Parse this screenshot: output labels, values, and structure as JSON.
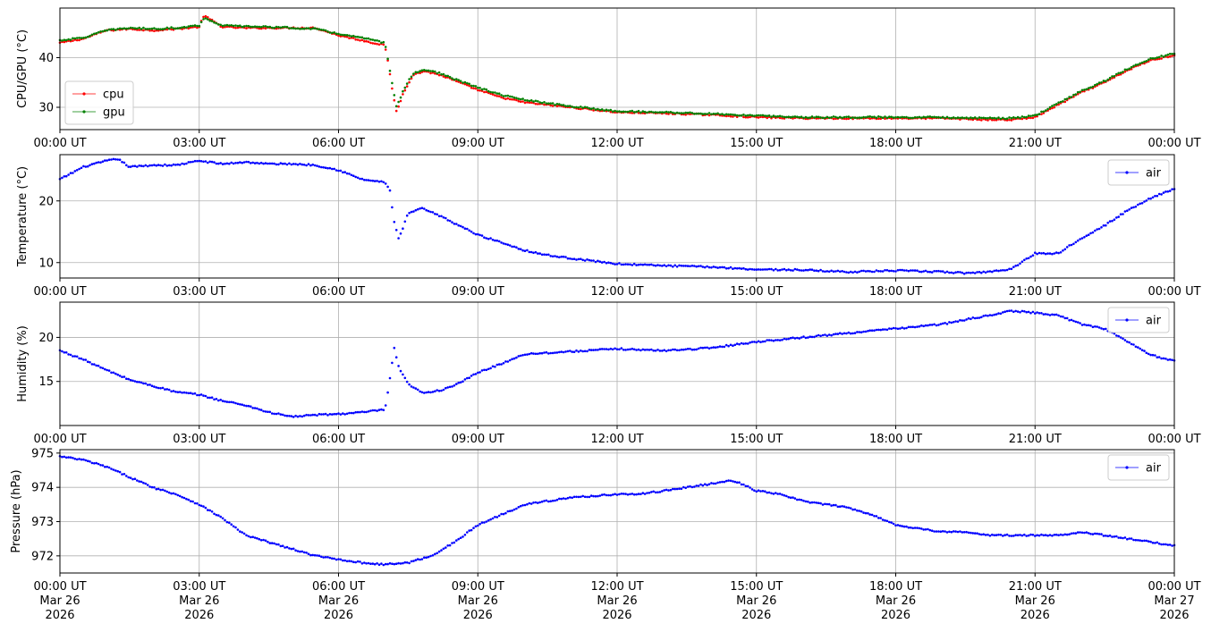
{
  "chart_data": [
    {
      "type": "line",
      "ylabel": "CPU/GPU (°C)",
      "xlim": [
        "00:00",
        "24:00"
      ],
      "ylim": [
        25.5,
        50
      ],
      "yticks": [
        30,
        40
      ],
      "x_tick_labels": [
        "00:00 UT",
        "03:00 UT",
        "06:00 UT",
        "09:00 UT",
        "12:00 UT",
        "15:00 UT",
        "18:00 UT",
        "21:00 UT",
        "00:00 UT"
      ],
      "grid": true,
      "legend_placement": "bottom-left",
      "series": [
        {
          "name": "cpu",
          "color": "#ff0000",
          "x_hours": [
            0,
            0.5,
            1,
            1.5,
            2,
            2.5,
            3,
            3.1,
            3.5,
            4,
            4.5,
            5,
            5.5,
            6,
            6.5,
            7,
            7.05,
            7.15,
            7.25,
            7.4,
            7.6,
            7.85,
            8.2,
            8.6,
            9,
            9.5,
            10,
            10.5,
            11,
            12,
            13,
            14,
            15,
            16,
            17,
            18,
            19,
            20,
            20.5,
            21,
            21.5,
            22,
            22.5,
            23,
            23.5,
            24
          ],
          "y": [
            43,
            43.8,
            45.5,
            45.8,
            45.5,
            45.8,
            46.2,
            48.5,
            46.2,
            46,
            46,
            46,
            46,
            44.5,
            43.5,
            42.5,
            40,
            34,
            29,
            33,
            36.5,
            37.3,
            36.5,
            35,
            33.5,
            32,
            31,
            30.5,
            30,
            29,
            28.8,
            28.5,
            28,
            27.8,
            27.8,
            27.8,
            27.8,
            27.5,
            27.5,
            28,
            30.5,
            33,
            35,
            37.5,
            39.5,
            40.5
          ]
        },
        {
          "name": "gpu",
          "color": "#008000",
          "x_hours": [
            0,
            0.5,
            1,
            1.5,
            2,
            2.5,
            3,
            3.1,
            3.5,
            4,
            4.5,
            5,
            5.5,
            6,
            6.5,
            7,
            7.05,
            7.15,
            7.25,
            7.4,
            7.6,
            7.85,
            8.2,
            8.6,
            9,
            9.5,
            10,
            10.5,
            11,
            12,
            13,
            14,
            15,
            16,
            17,
            18,
            19,
            20,
            20.5,
            21,
            21.5,
            22,
            22.5,
            23,
            23.5,
            24
          ],
          "y": [
            43.5,
            44,
            45.5,
            46,
            45.8,
            46,
            46.5,
            48,
            46.5,
            46.3,
            46.2,
            46,
            45.8,
            44.8,
            44,
            43,
            40.5,
            35,
            30,
            33.5,
            36.8,
            37.6,
            36.8,
            35.3,
            34,
            32.5,
            31.5,
            30.8,
            30.2,
            29.2,
            29,
            28.7,
            28.3,
            28,
            28,
            28,
            28,
            27.8,
            27.8,
            28.3,
            30.8,
            33.3,
            35.3,
            37.8,
            39.8,
            40.8
          ]
        }
      ]
    },
    {
      "type": "line",
      "ylabel": "Temperature (°C)",
      "xlim": [
        "00:00",
        "24:00"
      ],
      "ylim": [
        7.5,
        27.5
      ],
      "yticks": [
        10,
        20
      ],
      "x_tick_labels": [
        "00:00 UT",
        "03:00 UT",
        "06:00 UT",
        "09:00 UT",
        "12:00 UT",
        "15:00 UT",
        "18:00 UT",
        "21:00 UT",
        "00:00 UT"
      ],
      "grid": true,
      "legend_placement": "top-right",
      "series": [
        {
          "name": "air",
          "color": "#0000ff",
          "x_hours": [
            0,
            0.5,
            1,
            1.25,
            1.5,
            2,
            2.5,
            3,
            3.5,
            4,
            4.5,
            5,
            5.5,
            6,
            6.5,
            7,
            7.1,
            7.2,
            7.3,
            7.5,
            7.8,
            8.2,
            8.6,
            9,
            9.5,
            10,
            10.5,
            11,
            12,
            13,
            14,
            15,
            16,
            17,
            18,
            19,
            19.5,
            20,
            20.5,
            21,
            21.5,
            22,
            22.5,
            23,
            23.5,
            24
          ],
          "y": [
            23.5,
            25.5,
            26.5,
            26.8,
            25.5,
            25.8,
            25.8,
            26.5,
            26,
            26.3,
            26,
            26,
            25.8,
            25,
            23.5,
            23,
            22,
            16.5,
            13.8,
            18,
            18.8,
            17.5,
            16,
            14.5,
            13.3,
            12,
            11.2,
            10.7,
            9.8,
            9.5,
            9.3,
            8.9,
            8.8,
            8.5,
            8.7,
            8.5,
            8.3,
            8.5,
            9,
            11.5,
            11.5,
            14,
            16,
            18.5,
            20.5,
            22
          ]
        }
      ]
    },
    {
      "type": "line",
      "ylabel": "Humidity (%)",
      "xlim": [
        "00:00",
        "24:00"
      ],
      "ylim": [
        10,
        24
      ],
      "yticks": [
        15,
        20
      ],
      "x_tick_labels": [
        "00:00 UT",
        "03:00 UT",
        "06:00 UT",
        "09:00 UT",
        "12:00 UT",
        "15:00 UT",
        "18:00 UT",
        "21:00 UT",
        "00:00 UT"
      ],
      "grid": true,
      "legend_placement": "top-right",
      "series": [
        {
          "name": "air",
          "color": "#0000ff",
          "x_hours": [
            0,
            0.5,
            1,
            1.5,
            2,
            2.5,
            3,
            3.5,
            4,
            4.5,
            5,
            5.5,
            6,
            6.5,
            7,
            7.1,
            7.2,
            7.3,
            7.5,
            7.8,
            8.2,
            8.6,
            9,
            9.5,
            10,
            11,
            12,
            13,
            14,
            15,
            16,
            17,
            18,
            19,
            20,
            20.5,
            21,
            21.5,
            22,
            22.5,
            23,
            23.5,
            24
          ],
          "y": [
            18.5,
            17.5,
            16.3,
            15.2,
            14.5,
            13.8,
            13.5,
            12.8,
            12.3,
            11.5,
            11,
            11.2,
            11.3,
            11.5,
            11.8,
            15,
            18.8,
            16.5,
            14.7,
            13.7,
            14,
            14.8,
            16,
            17,
            18.1,
            18.4,
            18.7,
            18.5,
            18.8,
            19.5,
            20,
            20.5,
            21,
            21.5,
            22.5,
            23,
            22.8,
            22.5,
            21.5,
            21,
            19.5,
            18,
            17.3
          ]
        }
      ]
    },
    {
      "type": "line",
      "ylabel": "Pressure (hPa)",
      "xlim": [
        "00:00",
        "24:00"
      ],
      "ylim": [
        971.5,
        975.1
      ],
      "yticks": [
        972,
        973,
        974,
        975
      ],
      "x_tick_labels": [
        "00:00 UT\nMar 26\n2026",
        "03:00 UT\nMar 26\n2026",
        "06:00 UT\nMar 26\n2026",
        "09:00 UT\nMar 26\n2026",
        "12:00 UT\nMar 26\n2026",
        "15:00 UT\nMar 26\n2026",
        "18:00 UT\nMar 26\n2026",
        "21:00 UT\nMar 26\n2026",
        "00:00 UT\nMar 27\n2026"
      ],
      "grid": true,
      "legend_placement": "top-right",
      "series": [
        {
          "name": "air",
          "color": "#0000ff",
          "x_hours": [
            0,
            0.5,
            1,
            1.5,
            2,
            2.5,
            3,
            3.5,
            4,
            4.5,
            5,
            5.5,
            6,
            6.5,
            7,
            7.5,
            8,
            8.5,
            9,
            9.5,
            10,
            10.5,
            11,
            11.5,
            12,
            12.5,
            13,
            13.5,
            14,
            14.5,
            15,
            15.5,
            16,
            16.5,
            17,
            17.5,
            18,
            18.5,
            19,
            19.5,
            20,
            20.5,
            21,
            21.5,
            22,
            22.5,
            23,
            23.5,
            24
          ],
          "y": [
            974.9,
            974.8,
            974.6,
            974.3,
            974,
            973.8,
            973.5,
            973.1,
            972.6,
            972.4,
            972.2,
            972,
            971.9,
            971.8,
            971.75,
            971.8,
            972,
            972.4,
            972.9,
            973.2,
            973.5,
            973.6,
            973.7,
            973.75,
            973.8,
            973.8,
            973.9,
            974,
            974.1,
            974.2,
            973.9,
            973.8,
            973.6,
            973.5,
            973.4,
            973.2,
            972.9,
            972.8,
            972.7,
            972.7,
            972.6,
            972.6,
            972.6,
            972.6,
            972.7,
            972.6,
            972.5,
            972.4,
            972.3
          ]
        }
      ]
    }
  ]
}
